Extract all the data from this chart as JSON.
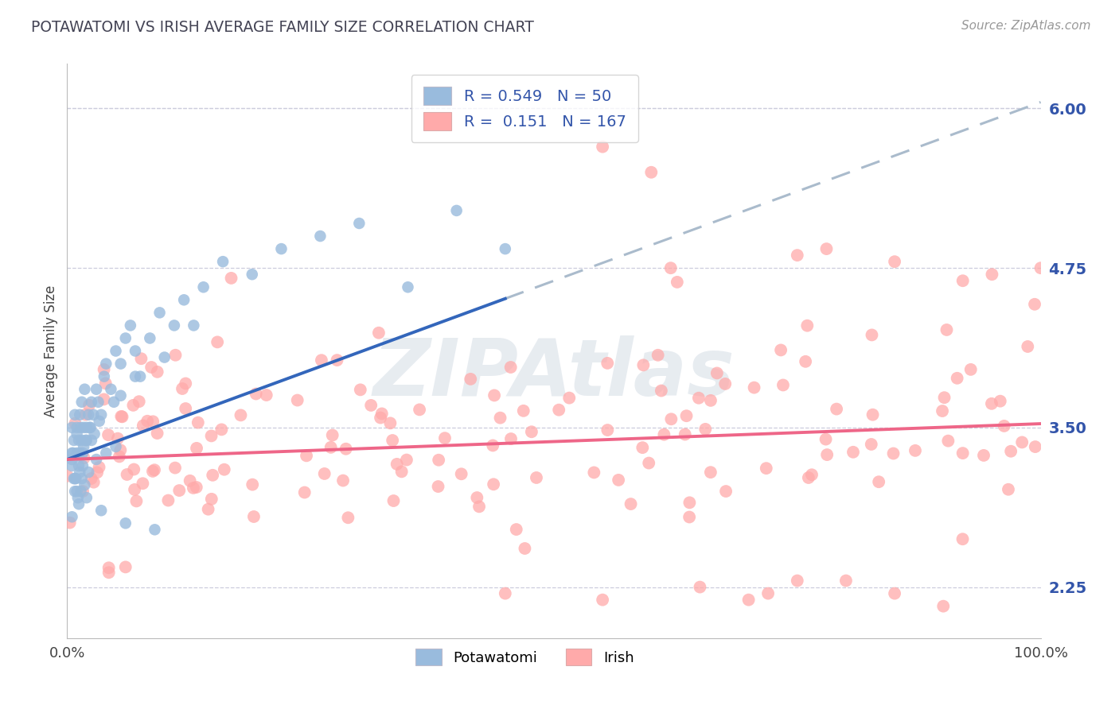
{
  "title": "POTAWATOMI VS IRISH AVERAGE FAMILY SIZE CORRELATION CHART",
  "source_text": "Source: ZipAtlas.com",
  "ylabel": "Average Family Size",
  "watermark": "ZIPAtlas",
  "potawatomi_R": 0.549,
  "potawatomi_N": 50,
  "irish_R": 0.151,
  "irish_N": 167,
  "blue_scatter_color": "#99BBDD",
  "pink_scatter_color": "#FFAAAA",
  "blue_line_color": "#3366BB",
  "pink_line_color": "#EE6688",
  "gray_dash_color": "#AABBCC",
  "title_color": "#444455",
  "axis_label_color": "#3355AA",
  "right_ytick_labels": [
    "2.25",
    "3.50",
    "4.75",
    "6.00"
  ],
  "right_ytick_values": [
    2.25,
    3.5,
    4.75,
    6.0
  ],
  "ylim": [
    1.85,
    6.35
  ],
  "xlim": [
    0.0,
    1.0
  ],
  "background_color": "#FFFFFF",
  "grid_color": "#CCCCDD",
  "pot_line_x_start": 0.0,
  "pot_line_x_solid_end": 0.45,
  "pot_line_x_dash_end": 1.0,
  "pot_line_y_at_0": 3.25,
  "pot_line_slope": 2.8,
  "irish_line_y_at_0": 3.25,
  "irish_line_slope": 0.28
}
